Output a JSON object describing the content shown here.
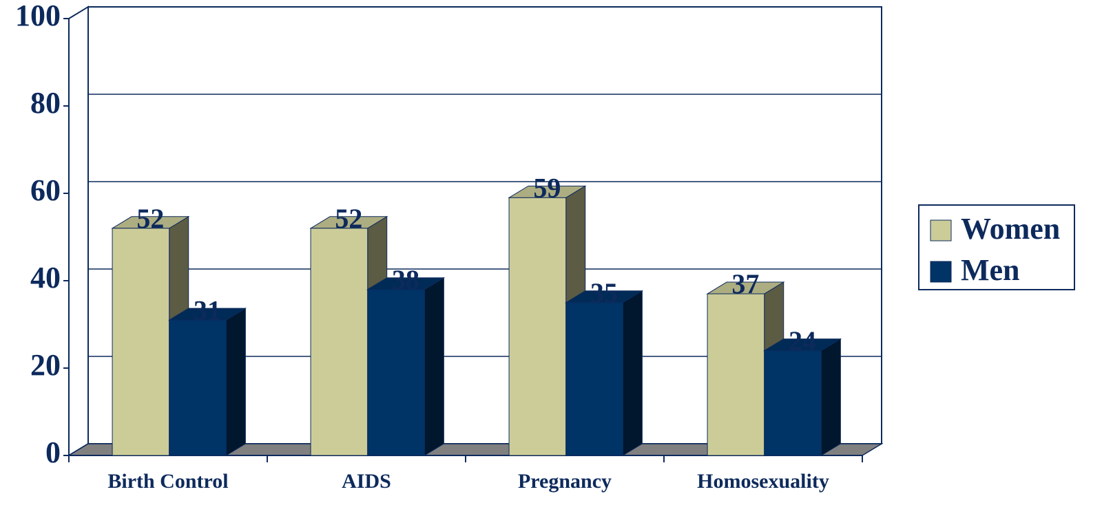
{
  "chart_data": {
    "type": "bar",
    "categories": [
      "Birth Control",
      "AIDS",
      "Pregnancy",
      "Homosexuality"
    ],
    "series": [
      {
        "name": "Women",
        "color": "#cccc99",
        "values": [
          52,
          52,
          59,
          37
        ]
      },
      {
        "name": "Men",
        "color": "#003366",
        "values": [
          31,
          38,
          35,
          24
        ]
      }
    ],
    "ylim": [
      0,
      100
    ],
    "yticks": [
      0,
      20,
      40,
      60,
      80,
      100
    ],
    "grid": true,
    "legend": "right"
  }
}
